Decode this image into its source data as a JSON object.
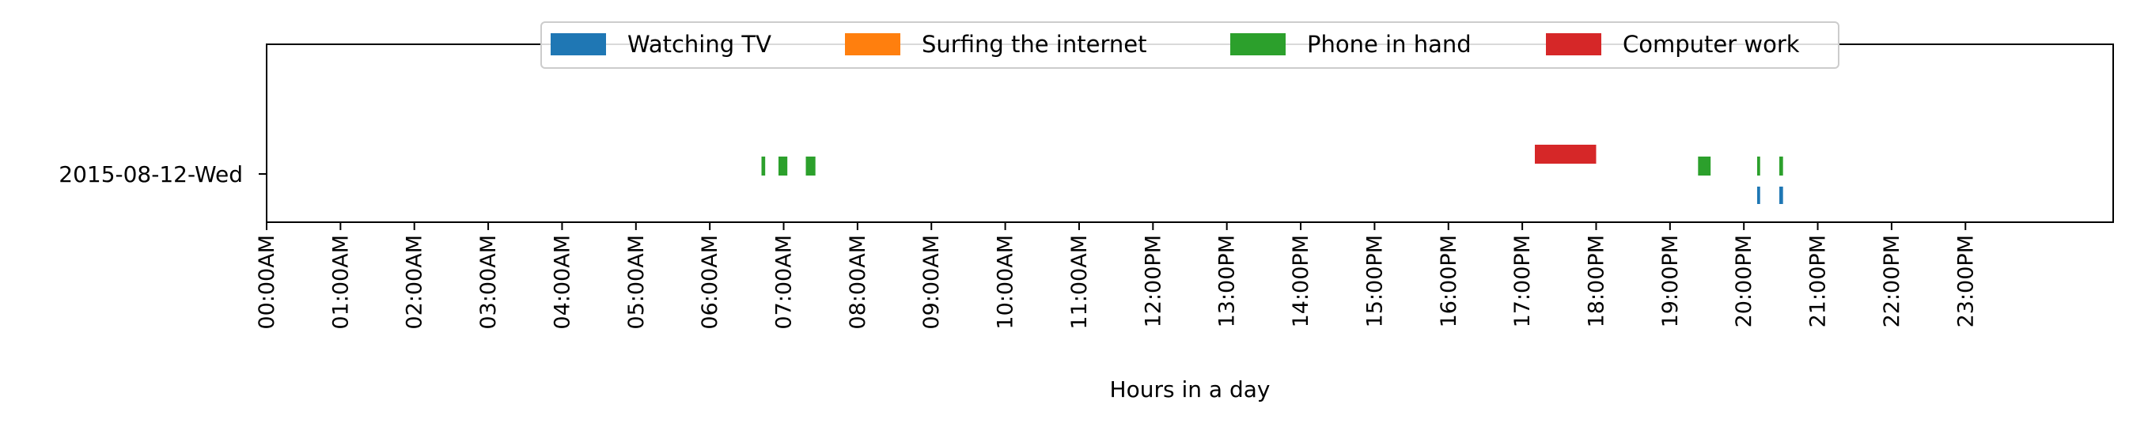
{
  "chart_data": {
    "type": "timeline",
    "xlabel": "Hours in a day",
    "xlim": [
      0,
      24
    ],
    "categories": [
      "2015-08-12-Wed"
    ],
    "xtick_labels": [
      "00:00AM",
      "01:00AM",
      "02:00AM",
      "03:00AM",
      "04:00AM",
      "05:00AM",
      "06:00AM",
      "07:00AM",
      "08:00AM",
      "09:00AM",
      "10:00AM",
      "11:00AM",
      "12:00PM",
      "13:00PM",
      "14:00PM",
      "15:00PM",
      "16:00PM",
      "17:00PM",
      "18:00PM",
      "19:00PM",
      "20:00PM",
      "21:00PM",
      "22:00PM",
      "23:00PM"
    ],
    "legend_position": "top-center",
    "grid": false,
    "series": [
      {
        "name": "Watching TV",
        "color": "#1f77b4",
        "intervals": [
          [
            20.18,
            20.22
          ],
          [
            20.48,
            20.53
          ]
        ]
      },
      {
        "name": "Surfing the internet",
        "color": "#ff7f0e",
        "intervals": []
      },
      {
        "name": "Phone in hand",
        "color": "#2ca02c",
        "intervals": [
          [
            6.7,
            6.75
          ],
          [
            6.93,
            7.05
          ],
          [
            7.3,
            7.43
          ],
          [
            19.38,
            19.55
          ],
          [
            20.18,
            20.22
          ],
          [
            20.48,
            20.53
          ]
        ]
      },
      {
        "name": "Computer work",
        "color": "#d62728",
        "intervals": [
          [
            17.17,
            18.0
          ]
        ]
      }
    ]
  }
}
